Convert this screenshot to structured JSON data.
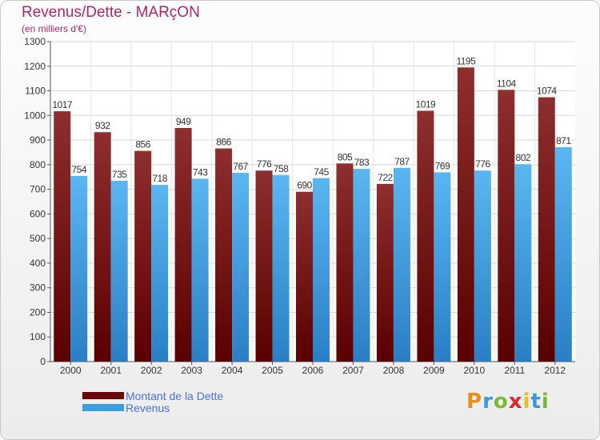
{
  "title": "Revenus/Dette - MARçON",
  "subtitle": "(en milliers d'€)",
  "logo": {
    "letters": [
      "P",
      "r",
      "o",
      "x",
      "i",
      "t",
      "i"
    ],
    "colors": [
      "#e8901a",
      "#3a9ad8",
      "#7cb83a",
      "#d8282a",
      "#e8c020",
      "#3a9ad8",
      "#7cb83a"
    ]
  },
  "chart_data": {
    "type": "bar",
    "categories": [
      "2000",
      "2001",
      "2002",
      "2003",
      "2004",
      "2005",
      "2006",
      "2007",
      "2008",
      "2009",
      "2010",
      "2011",
      "2012"
    ],
    "series": [
      {
        "name": "Montant de la Dette",
        "color": "#7a1010",
        "values": [
          1017,
          932,
          856,
          949,
          866,
          776,
          690,
          805,
          722,
          1019,
          1195,
          1104,
          1074
        ]
      },
      {
        "name": "Revenus",
        "color": "#3a9ee0",
        "values": [
          754,
          735,
          718,
          743,
          767,
          758,
          745,
          783,
          787,
          769,
          776,
          802,
          871
        ]
      }
    ],
    "ylim": [
      0,
      1300
    ],
    "yticks": [
      0,
      100,
      200,
      300,
      400,
      500,
      600,
      700,
      800,
      900,
      1000,
      1100,
      1200,
      1300
    ],
    "grid": true,
    "legend": "bottom-left"
  }
}
